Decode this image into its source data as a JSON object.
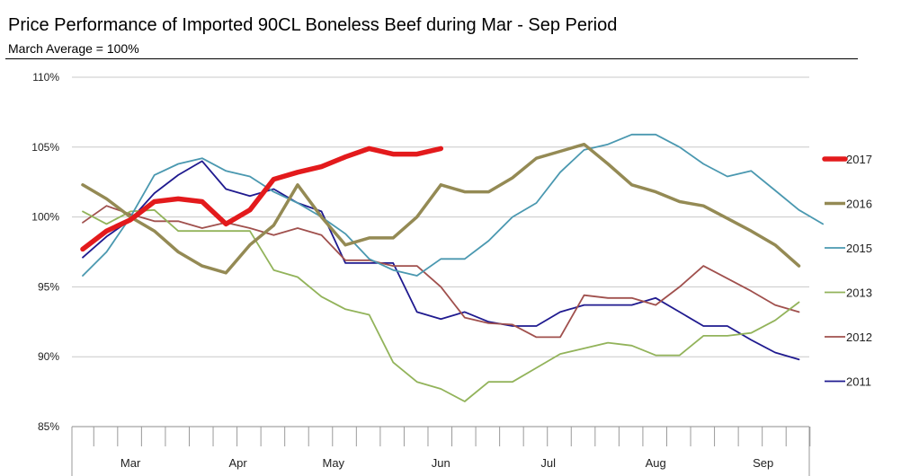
{
  "chart_data": {
    "type": "line",
    "title": "Price Performance of Imported 90CL Boneless Beef during Mar - Sep Period",
    "subtitle": "March Average = 100%",
    "y_tick_labels": [
      "110%",
      "105%",
      "100%",
      "95%",
      "90%",
      "85%"
    ],
    "y_ticks": [
      110,
      105,
      100,
      95,
      90,
      85
    ],
    "ylim": [
      85,
      110
    ],
    "x_categories": [
      "Mar",
      "Apr",
      "May",
      "Jun",
      "Jul",
      "Aug",
      "Sep"
    ],
    "x_week_range": [
      0,
      30
    ],
    "grid": "horizontal",
    "legend_position": "right",
    "series": [
      {
        "name": "2017",
        "color": "#e31a1c",
        "emphasis": true,
        "points": [
          [
            0,
            97.7
          ],
          [
            1,
            99
          ],
          [
            2,
            99.8
          ],
          [
            3,
            101.1
          ],
          [
            4,
            101.3
          ],
          [
            5,
            101.1
          ],
          [
            6,
            99.5
          ],
          [
            7,
            100.5
          ],
          [
            8,
            102.7
          ],
          [
            9,
            103.2
          ],
          [
            10,
            103.6
          ],
          [
            11,
            104.3
          ],
          [
            12,
            104.9
          ],
          [
            13,
            104.5
          ],
          [
            14,
            104.5
          ],
          [
            15,
            104.9
          ]
        ]
      },
      {
        "name": "2016",
        "color": "#948a54",
        "emphasis": true,
        "points": [
          [
            0,
            102.3
          ],
          [
            1,
            101.3
          ],
          [
            2,
            100
          ],
          [
            3,
            99
          ],
          [
            4,
            97.5
          ],
          [
            5,
            96.5
          ],
          [
            6,
            96
          ],
          [
            7,
            98
          ],
          [
            8,
            99.4
          ],
          [
            9,
            102.3
          ],
          [
            10,
            100
          ],
          [
            11,
            98
          ],
          [
            12,
            98.5
          ],
          [
            13,
            98.5
          ],
          [
            14,
            100
          ],
          [
            15,
            102.3
          ],
          [
            16,
            101.8
          ],
          [
            17,
            101.8
          ],
          [
            18,
            102.8
          ],
          [
            19,
            104.2
          ],
          [
            20,
            104.7
          ],
          [
            21,
            105.2
          ],
          [
            22,
            103.8
          ],
          [
            23,
            102.3
          ],
          [
            24,
            101.8
          ],
          [
            25,
            101.1
          ],
          [
            26,
            100.8
          ],
          [
            27,
            99.9
          ],
          [
            28,
            99
          ],
          [
            29,
            98
          ],
          [
            30,
            96.5
          ]
        ]
      },
      {
        "name": "2015",
        "color": "#4a98b0",
        "emphasis": false,
        "points": [
          [
            0,
            95.8
          ],
          [
            1,
            97.5
          ],
          [
            2,
            100
          ],
          [
            3,
            103
          ],
          [
            4,
            103.8
          ],
          [
            5,
            104.2
          ],
          [
            6,
            103.3
          ],
          [
            7,
            102.9
          ],
          [
            8,
            101.8
          ],
          [
            9,
            101
          ],
          [
            10,
            100
          ],
          [
            11,
            98.8
          ],
          [
            12,
            97
          ],
          [
            13,
            96.2
          ],
          [
            14,
            95.8
          ],
          [
            15,
            97
          ],
          [
            16,
            97
          ],
          [
            17,
            98.3
          ],
          [
            18,
            100
          ],
          [
            19,
            101
          ],
          [
            20,
            103.2
          ],
          [
            21,
            104.8
          ],
          [
            22,
            105.2
          ],
          [
            23,
            105.9
          ],
          [
            24,
            105.9
          ],
          [
            25,
            105
          ],
          [
            26,
            103.8
          ],
          [
            27,
            102.9
          ],
          [
            28,
            103.3
          ],
          [
            29,
            101.9
          ],
          [
            30,
            100.5
          ],
          [
            31,
            99.5
          ]
        ]
      },
      {
        "name": "2013",
        "color": "#92b35a",
        "emphasis": false,
        "points": [
          [
            0,
            100.4
          ],
          [
            1,
            99.5
          ],
          [
            2,
            100.4
          ],
          [
            3,
            100.5
          ],
          [
            4,
            99
          ],
          [
            5,
            99
          ],
          [
            6,
            99
          ],
          [
            7,
            99
          ],
          [
            8,
            96.2
          ],
          [
            9,
            95.7
          ],
          [
            10,
            94.3
          ],
          [
            11,
            93.4
          ],
          [
            12,
            93
          ],
          [
            13,
            89.6
          ],
          [
            14,
            88.2
          ],
          [
            15,
            87.7
          ],
          [
            16,
            86.8
          ],
          [
            17,
            88.2
          ],
          [
            18,
            88.2
          ],
          [
            19,
            89.2
          ],
          [
            20,
            90.2
          ],
          [
            21,
            90.6
          ],
          [
            22,
            91
          ],
          [
            23,
            90.8
          ],
          [
            24,
            90.1
          ],
          [
            25,
            90.1
          ],
          [
            26,
            91.5
          ],
          [
            27,
            91.5
          ],
          [
            28,
            91.7
          ],
          [
            29,
            92.6
          ],
          [
            30,
            93.9
          ]
        ]
      },
      {
        "name": "2012",
        "color": "#a0504d",
        "emphasis": false,
        "points": [
          [
            0,
            99.6
          ],
          [
            1,
            100.8
          ],
          [
            2,
            100.2
          ],
          [
            3,
            99.7
          ],
          [
            4,
            99.7
          ],
          [
            5,
            99.2
          ],
          [
            6,
            99.6
          ],
          [
            7,
            99.2
          ],
          [
            8,
            98.7
          ],
          [
            9,
            99.2
          ],
          [
            10,
            98.7
          ],
          [
            11,
            96.9
          ],
          [
            12,
            96.9
          ],
          [
            13,
            96.5
          ],
          [
            14,
            96.5
          ],
          [
            15,
            95
          ],
          [
            16,
            92.8
          ],
          [
            17,
            92.4
          ],
          [
            18,
            92.3
          ],
          [
            19,
            91.4
          ],
          [
            20,
            91.4
          ],
          [
            21,
            94.4
          ],
          [
            22,
            94.2
          ],
          [
            23,
            94.2
          ],
          [
            24,
            93.7
          ],
          [
            25,
            95
          ],
          [
            26,
            96.5
          ],
          [
            27,
            95.6
          ],
          [
            28,
            94.7
          ],
          [
            29,
            93.7
          ],
          [
            30,
            93.2
          ]
        ]
      },
      {
        "name": "2011",
        "color": "#1f1a8f",
        "emphasis": false,
        "points": [
          [
            0,
            97.1
          ],
          [
            1,
            98.6
          ],
          [
            2,
            99.8
          ],
          [
            3,
            101.7
          ],
          [
            4,
            103
          ],
          [
            5,
            104
          ],
          [
            6,
            102
          ],
          [
            7,
            101.5
          ],
          [
            8,
            102
          ],
          [
            9,
            101
          ],
          [
            10,
            100.4
          ],
          [
            11,
            96.7
          ],
          [
            12,
            96.7
          ],
          [
            13,
            96.7
          ],
          [
            14,
            93.2
          ],
          [
            15,
            92.7
          ],
          [
            16,
            93.2
          ],
          [
            17,
            92.5
          ],
          [
            18,
            92.2
          ],
          [
            19,
            92.2
          ],
          [
            20,
            93.2
          ],
          [
            21,
            93.7
          ],
          [
            22,
            93.7
          ],
          [
            23,
            93.7
          ],
          [
            24,
            94.2
          ],
          [
            25,
            93.2
          ],
          [
            26,
            92.2
          ],
          [
            27,
            92.2
          ],
          [
            28,
            91.2
          ],
          [
            29,
            90.3
          ],
          [
            30,
            89.8
          ]
        ]
      }
    ]
  }
}
